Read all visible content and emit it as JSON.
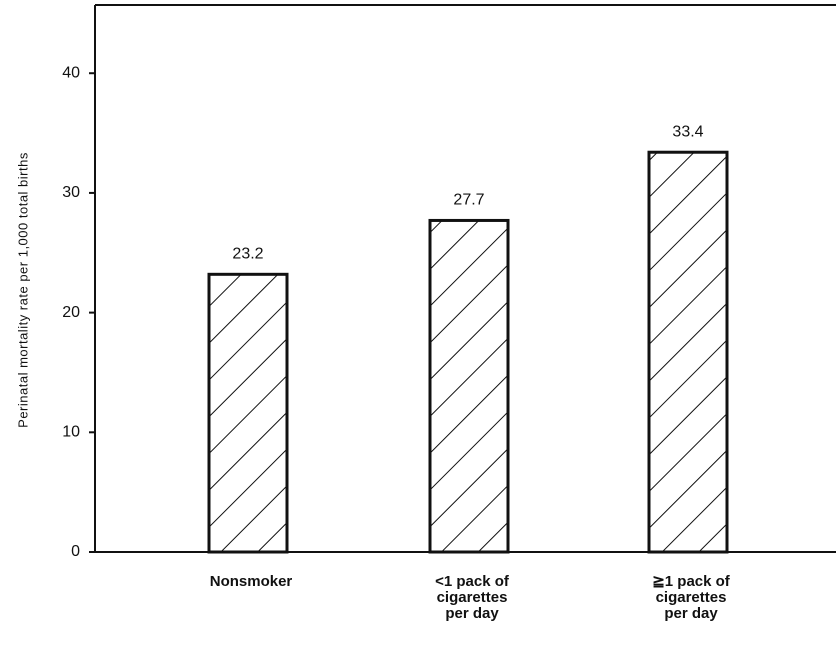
{
  "chart_data": {
    "type": "bar",
    "y_label": "Perinatal mortality rate per 1,000 total births",
    "categories": [
      "Nonsmoker",
      "<1 pack of cigarettes per day",
      "≧1 pack of cigarettes per day"
    ],
    "values": [
      23.2,
      27.7,
      33.4
    ],
    "color": "#ffffff",
    "ylim": [
      0,
      45.7
    ],
    "yticks": [
      0,
      10,
      20,
      30,
      40
    ],
    "grid": false
  }
}
